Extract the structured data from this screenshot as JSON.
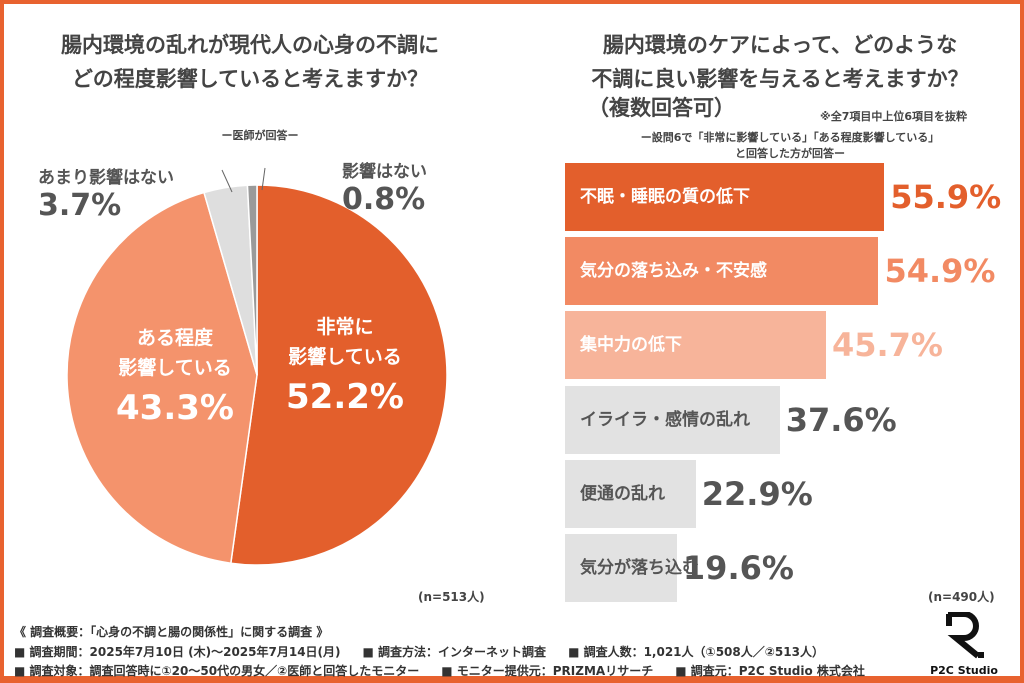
{
  "left": {
    "title_line1": "腸内環境の乱れが現代人の心身の不調に",
    "title_line2": "どの程度影響していると考えますか？",
    "subtitle": "ー医師が回答ー",
    "n": "(n=513人)"
  },
  "right": {
    "title_line1": "腸内環境のケアによって、どのような",
    "title_line2": "不調に良い影響を与えると考えますか？",
    "title_line3": "（複数回答可）",
    "note": "※全7項目中上位6項目を抜粋",
    "subtitle_line1": "ー設問6で「非常に影響している」「ある程度影響している」",
    "subtitle_line2": "と回答した方が回答ー",
    "n": "(n=490人)"
  },
  "chart_data": [
    {
      "type": "pie",
      "start": "top",
      "direction": "clockwise",
      "slices": [
        {
          "label_line1": "非常に",
          "label_line2": "影響している",
          "value": 52.2,
          "display": "52.2%",
          "color": "#e35f2c"
        },
        {
          "label_line1": "ある程度",
          "label_line2": "影響している",
          "value": 43.3,
          "display": "43.3%",
          "color": "#f4936c"
        },
        {
          "label_line1": "あまり影響はない",
          "label_line2": "",
          "value": 3.7,
          "display": "3.7%",
          "color": "#dedede"
        },
        {
          "label_line1": "影響はない",
          "label_line2": "",
          "value": 0.8,
          "display": "0.8%",
          "color": "#9a9a9a"
        }
      ]
    },
    {
      "type": "bar",
      "orientation": "horizontal",
      "xlim": [
        0,
        100
      ],
      "bars": [
        {
          "label": "不眠・睡眠の質の低下",
          "value": 55.9,
          "display": "55.9%",
          "color": "#e35f2c",
          "text_color": "#e35f2c",
          "label_color": "#ffffff"
        },
        {
          "label": "気分の落ち込み・不安感",
          "value": 54.9,
          "display": "54.9%",
          "color": "#f28a63",
          "text_color": "#f28a63",
          "label_color": "#ffffff"
        },
        {
          "label": "集中力の低下",
          "value": 45.7,
          "display": "45.7%",
          "color": "#f7b49a",
          "text_color": "#f7b49a",
          "label_color": "#ffffff"
        },
        {
          "label": "イライラ・感情の乱れ",
          "value": 37.6,
          "display": "37.6%",
          "color": "#e2e2e2",
          "text_color": "#555555",
          "label_color": "#555555"
        },
        {
          "label": "便通の乱れ",
          "value": 22.9,
          "display": "22.9%",
          "color": "#e2e2e2",
          "text_color": "#555555",
          "label_color": "#555555"
        },
        {
          "label": "気分が落ち込む",
          "value": 19.6,
          "display": "19.6%",
          "color": "#e2e2e2",
          "text_color": "#555555",
          "label_color": "#555555"
        }
      ]
    }
  ],
  "footer": {
    "overview": "《 調査概要：「心身の不調と腸の関係性」に関する調査 》",
    "line2": [
      "■ 調査期間：2025年7月10日 (木)～2025年7月14日(月)",
      "■ 調査方法：インターネット調査",
      "■ 調査人数：1,021人（①508人／②513人）"
    ],
    "line3": [
      "■ 調査対象：調査回答時に①20～50代の男女／②医師と回答したモニター",
      "■ モニター提供元：PRIZMAリサーチ",
      "■ 調査元：P2C Studio 株式会社"
    ]
  },
  "logo": {
    "text": "P2C Studio"
  },
  "colors": {
    "frame": "#e8622f"
  }
}
